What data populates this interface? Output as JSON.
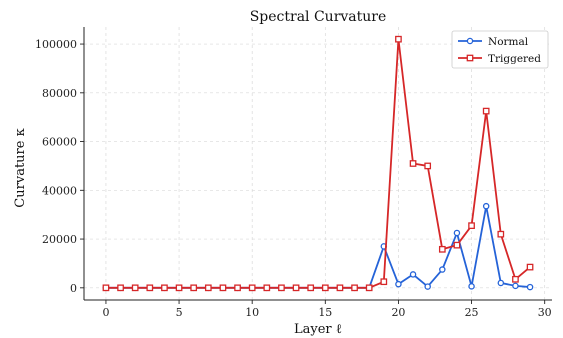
{
  "chart_data": {
    "type": "line",
    "title": "Spectral Curvature",
    "xlabel": "Layer ℓ",
    "ylabel": "Curvature κ",
    "xlim": [
      -1.5,
      30.5
    ],
    "ylim": [
      -5000,
      107000
    ],
    "xticks": [
      0,
      5,
      10,
      15,
      20,
      25,
      30
    ],
    "yticks": [
      0,
      20000,
      40000,
      60000,
      80000,
      100000
    ],
    "grid": true,
    "legend_position": "top-right",
    "series": [
      {
        "name": "Normal",
        "color": "#2563d8",
        "marker": "circle",
        "x": [
          0,
          1,
          2,
          3,
          4,
          5,
          6,
          7,
          8,
          9,
          10,
          11,
          12,
          13,
          14,
          15,
          16,
          17,
          18,
          19,
          20,
          21,
          22,
          23,
          24,
          25,
          26,
          27,
          28,
          29
        ],
        "values": [
          0,
          0,
          0,
          0,
          0,
          0,
          0,
          0,
          0,
          0,
          0,
          0,
          0,
          0,
          0,
          0,
          0,
          0,
          0,
          17000,
          1500,
          5500,
          500,
          7500,
          22500,
          600,
          33500,
          2000,
          800,
          300
        ]
      },
      {
        "name": "Triggered",
        "color": "#d62728",
        "marker": "square",
        "x": [
          0,
          1,
          2,
          3,
          4,
          5,
          6,
          7,
          8,
          9,
          10,
          11,
          12,
          13,
          14,
          15,
          16,
          17,
          18,
          19,
          20,
          21,
          22,
          23,
          24,
          25,
          26,
          27,
          28,
          29
        ],
        "values": [
          0,
          0,
          0,
          0,
          0,
          0,
          0,
          0,
          0,
          0,
          0,
          0,
          0,
          0,
          0,
          0,
          0,
          0,
          0,
          2500,
          102000,
          51000,
          50000,
          15800,
          17500,
          25500,
          72500,
          22000,
          3500,
          8500
        ]
      }
    ]
  }
}
